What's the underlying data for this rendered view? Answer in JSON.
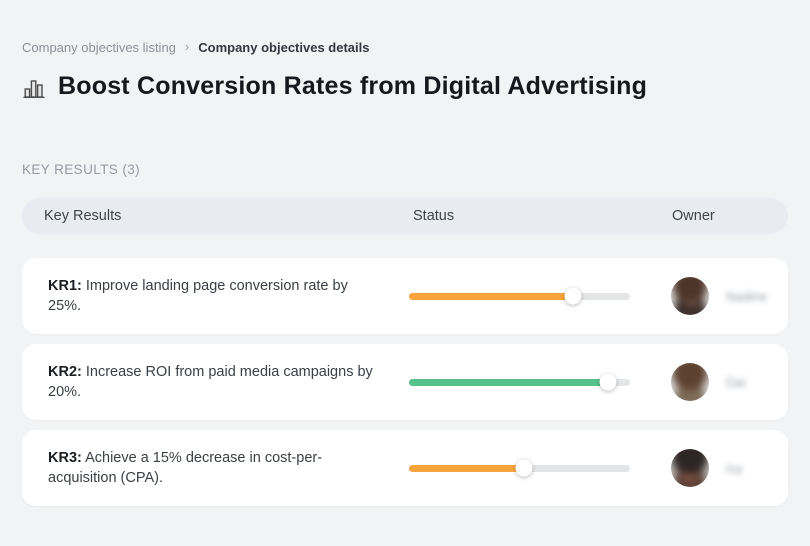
{
  "breadcrumb": {
    "items": [
      {
        "label": "Company objectives listing"
      },
      {
        "label": "Company objectives details"
      }
    ],
    "separator": "›"
  },
  "header": {
    "icon": "bar-chart",
    "title": "Boost Conversion Rates from Digital Advertising"
  },
  "section": {
    "label": "KEY RESULTS (3)"
  },
  "table": {
    "columns": [
      "Key Results",
      "Status",
      "Owner"
    ],
    "rows": [
      {
        "kr_label": "KR1:",
        "kr_text": "Improve landing page conversion rate by 25%.",
        "progress_percent": 74,
        "progress_color": "#f8a33c",
        "owner_name": "Nadine"
      },
      {
        "kr_label": "KR2:",
        "kr_text": "Increase ROI from paid media campaigns by 20%.",
        "progress_percent": 90,
        "progress_color": "#56c18a",
        "owner_name": "Dai"
      },
      {
        "kr_label": "KR3:",
        "kr_text": "Achieve a 15% decrease in cost-per-acquisition (CPA).",
        "progress_percent": 52,
        "progress_color": "#f8a33c",
        "owner_name": "Ivy"
      }
    ]
  },
  "colors": {
    "page_background": "#f2f3f5",
    "card_background": "#ffffff",
    "table_header_background": "#e8ecf1",
    "track": "#e4e5e7",
    "orange": "#f8a33c",
    "green": "#56c18a"
  }
}
